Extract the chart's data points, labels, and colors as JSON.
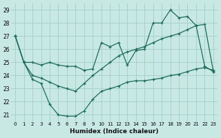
{
  "xlabel": "Humidex (Indice chaleur)",
  "ylabel": "",
  "background_color": "#c8e8e4",
  "grid_color": "#a8d0cc",
  "line_color": "#1a6b5a",
  "xlim": [
    -0.5,
    23.5
  ],
  "ylim": [
    20.5,
    29.5
  ],
  "xticks": [
    0,
    1,
    2,
    3,
    4,
    5,
    6,
    7,
    8,
    9,
    10,
    11,
    12,
    13,
    14,
    15,
    16,
    17,
    18,
    19,
    20,
    21,
    22,
    23
  ],
  "yticks": [
    21,
    22,
    23,
    24,
    25,
    26,
    27,
    28,
    29
  ],
  "line1_x": [
    0,
    1,
    2,
    3,
    4,
    5,
    6,
    7,
    8,
    9,
    10,
    11,
    12,
    13,
    14,
    15,
    16,
    17,
    18,
    19,
    20,
    21,
    22,
    23
  ],
  "line1_y": [
    27.0,
    25.0,
    25.0,
    24.8,
    25.0,
    24.8,
    24.7,
    24.7,
    24.4,
    24.5,
    26.5,
    26.2,
    26.5,
    24.8,
    25.9,
    26.0,
    28.0,
    28.0,
    29.0,
    28.4,
    28.5,
    27.8,
    24.7,
    24.3
  ],
  "line2_x": [
    0,
    1,
    2,
    3,
    4,
    5,
    6,
    7,
    8,
    9,
    10,
    11,
    12,
    13,
    14,
    15,
    16,
    17,
    18,
    19,
    20,
    21,
    22,
    23
  ],
  "line2_y": [
    27.0,
    25.0,
    23.7,
    23.4,
    21.8,
    21.0,
    20.9,
    20.9,
    21.3,
    22.2,
    22.8,
    23.0,
    23.2,
    23.5,
    23.6,
    23.6,
    23.7,
    23.8,
    24.0,
    24.1,
    24.3,
    24.5,
    24.6,
    24.4
  ],
  "line3_x": [
    0,
    1,
    2,
    3,
    4,
    5,
    6,
    7,
    8,
    9,
    10,
    11,
    12,
    13,
    14,
    15,
    16,
    17,
    18,
    19,
    20,
    21,
    22,
    23
  ],
  "line3_y": [
    27.0,
    25.0,
    24.0,
    23.8,
    23.5,
    23.2,
    23.0,
    22.8,
    23.4,
    24.0,
    24.5,
    25.0,
    25.5,
    25.8,
    26.0,
    26.2,
    26.5,
    26.8,
    27.0,
    27.2,
    27.5,
    27.8,
    27.9,
    24.3
  ]
}
